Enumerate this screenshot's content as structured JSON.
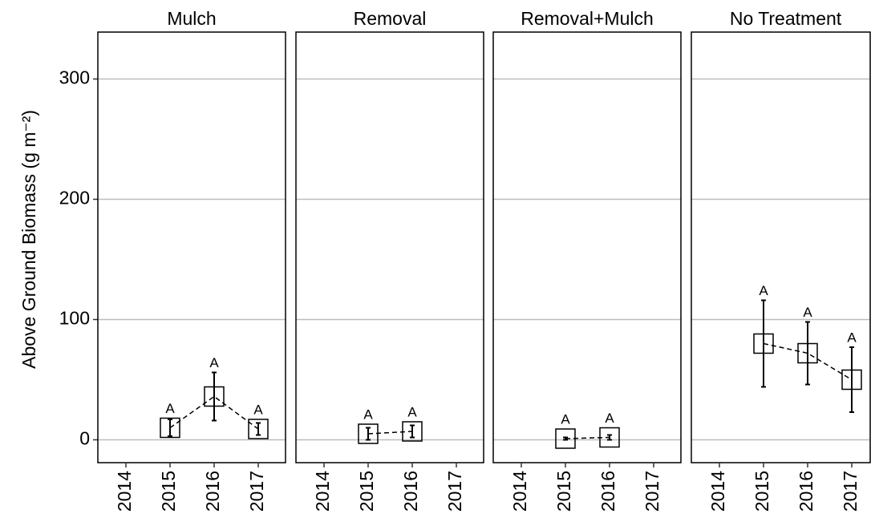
{
  "chart_data": [
    {
      "type": "line",
      "title": "Mulch",
      "ylabel": "Above Ground Biomass (g m⁻²)",
      "categories": [
        "2014",
        "2015",
        "2016",
        "2017"
      ],
      "series": [
        {
          "name": "Mulch",
          "color": "#000000",
          "values": [
            null,
            10,
            36,
            9
          ],
          "errors": [
            null,
            7,
            20,
            5
          ]
        }
      ],
      "annotations": [
        null,
        "A",
        "A",
        "A"
      ],
      "ylim": [
        -19,
        339
      ],
      "yticks": [
        0,
        100,
        200,
        300
      ],
      "grid": true
    },
    {
      "type": "line",
      "title": "Removal",
      "categories": [
        "2014",
        "2015",
        "2016",
        "2017"
      ],
      "series": [
        {
          "name": "Removal",
          "color": "#000000",
          "values": [
            null,
            5,
            7,
            null
          ],
          "errors": [
            null,
            5,
            5,
            null
          ]
        }
      ],
      "annotations": [
        null,
        "A",
        "A",
        null
      ],
      "ylim": [
        -19,
        339
      ],
      "yticks": [
        0,
        100,
        200,
        300
      ],
      "grid": true
    },
    {
      "type": "line",
      "title": "Removal+Mulch",
      "categories": [
        "2014",
        "2015",
        "2016",
        "2017"
      ],
      "series": [
        {
          "name": "Removal+Mulch",
          "color": "#000000",
          "values": [
            null,
            1,
            2,
            null
          ],
          "errors": [
            null,
            1,
            2,
            null
          ]
        }
      ],
      "annotations": [
        null,
        "A",
        "A",
        null
      ],
      "ylim": [
        -19,
        339
      ],
      "yticks": [
        0,
        100,
        200,
        300
      ],
      "grid": true
    },
    {
      "type": "line",
      "title": "No Treatment",
      "categories": [
        "2014",
        "2015",
        "2016",
        "2017"
      ],
      "series": [
        {
          "name": "No Treatment",
          "color": "#000000",
          "values": [
            null,
            80,
            72,
            50
          ],
          "errors": [
            null,
            36,
            26,
            27
          ]
        }
      ],
      "annotations": [
        null,
        "A",
        "A",
        "A"
      ],
      "ylim": [
        -19,
        339
      ],
      "yticks": [
        0,
        100,
        200,
        300
      ],
      "grid": true
    }
  ]
}
